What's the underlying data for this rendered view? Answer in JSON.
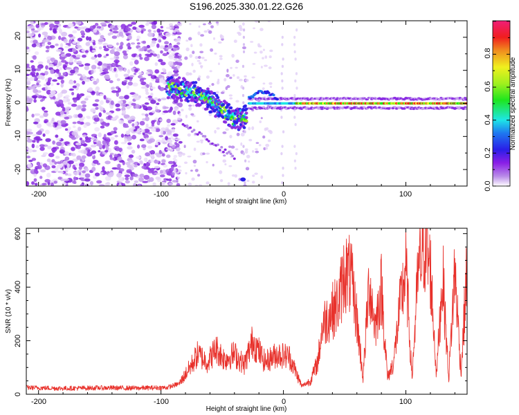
{
  "title": "S196.2025.330.01.22.G26",
  "chart_data": [
    {
      "type": "heatmap",
      "xlabel": "Height of straight line (km)",
      "ylabel": "Frequency (Hz)",
      "xlim": [
        -210,
        150
      ],
      "ylim": [
        -25,
        25
      ],
      "xticks": [
        "-200",
        "-100",
        "0",
        "100"
      ],
      "yticks": [
        "-20",
        "-10",
        "0",
        "10",
        "20"
      ],
      "colorbar": {
        "label": "Normalized spectral amplitude",
        "range": [
          0,
          1
        ],
        "ticks": [
          "0.0",
          "0.2",
          "0.4",
          "0.6",
          "0.8"
        ]
      },
      "features": {
        "noise_region_x": [
          -210,
          -90
        ],
        "diagonal_track": {
          "x": [
            -95,
            -80,
            -65,
            -50,
            -38,
            -30
          ],
          "freq": [
            5,
            4,
            2,
            -2,
            -5,
            -4
          ]
        },
        "steady_line": {
          "x_start": -28,
          "x_end": 150,
          "freq": 0
        }
      }
    },
    {
      "type": "line",
      "xlabel": "Height of straight line (km)",
      "ylabel": "SNR (10 * v/v)",
      "xlim": [
        -210,
        150
      ],
      "ylim": [
        0,
        620
      ],
      "xticks": [
        "-200",
        "-100",
        "0",
        "100"
      ],
      "yticks": [
        "0",
        "200",
        "400",
        "600"
      ],
      "color": "#e8312b",
      "series": {
        "name": "SNR",
        "x": [
          -210,
          -180,
          -150,
          -120,
          -95,
          -85,
          -75,
          -70,
          -62,
          -55,
          -48,
          -40,
          -32,
          -25,
          -15,
          -5,
          5,
          15,
          22,
          28,
          32,
          38,
          45,
          50,
          55,
          60,
          65,
          70,
          75,
          80,
          85,
          90,
          95,
          100,
          105,
          110,
          115,
          120,
          125,
          130,
          135,
          140,
          145,
          150
        ],
        "y": [
          25,
          22,
          24,
          23,
          25,
          40,
          110,
          150,
          120,
          170,
          130,
          150,
          110,
          200,
          120,
          150,
          140,
          30,
          50,
          120,
          260,
          300,
          340,
          460,
          440,
          280,
          60,
          420,
          250,
          400,
          60,
          120,
          320,
          470,
          60,
          450,
          560,
          470,
          70,
          450,
          60,
          470,
          80,
          470
        ]
      }
    }
  ]
}
